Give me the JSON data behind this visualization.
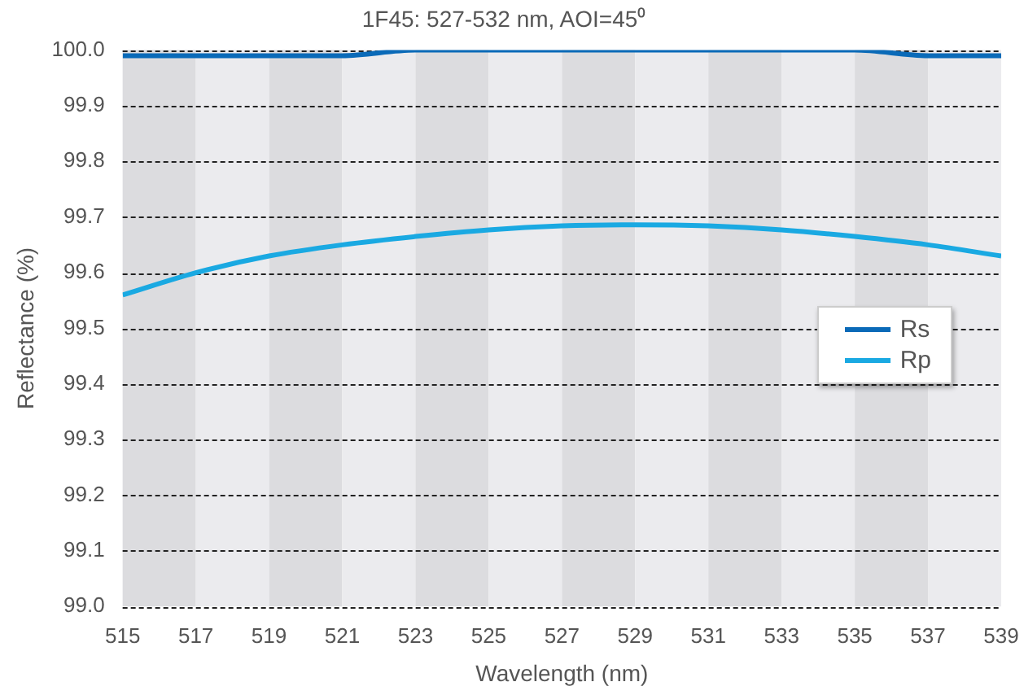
{
  "chart_data": {
    "type": "line",
    "title": "1F45: 527-532 nm, AOI=45⁰",
    "xlabel": "Wavelength (nm)",
    "ylabel": "Reflectance (%)",
    "x": [
      515,
      517,
      519,
      521,
      523,
      525,
      527,
      529,
      531,
      533,
      535,
      537,
      539
    ],
    "series": [
      {
        "name": "Rs",
        "color": "#0a6ab8",
        "values": [
          99.99,
          99.99,
          99.99,
          99.99,
          100.0,
          100.0,
          100.0,
          100.0,
          100.0,
          100.0,
          100.0,
          99.99,
          99.99
        ]
      },
      {
        "name": "Rp",
        "color": "#1aa9e2",
        "values": [
          99.56,
          99.6,
          99.63,
          99.65,
          99.665,
          99.677,
          99.684,
          99.686,
          99.684,
          99.677,
          99.665,
          99.65,
          99.63
        ]
      }
    ],
    "xlim": [
      515,
      539
    ],
    "xticks": [
      515,
      517,
      519,
      521,
      523,
      525,
      527,
      529,
      531,
      533,
      535,
      537,
      539
    ],
    "ylim": [
      99.0,
      100.0
    ],
    "yticks": [
      {
        "value": 99.0,
        "label": "99.0"
      },
      {
        "value": 99.1,
        "label": "99.1"
      },
      {
        "value": 99.2,
        "label": "99.2"
      },
      {
        "value": 99.3,
        "label": "99.3"
      },
      {
        "value": 99.4,
        "label": "99.4"
      },
      {
        "value": 99.5,
        "label": "99.5"
      },
      {
        "value": 99.6,
        "label": "99.6"
      },
      {
        "value": 99.7,
        "label": "99.7"
      },
      {
        "value": 99.8,
        "label": "99.8"
      },
      {
        "value": 99.9,
        "label": "99.9"
      },
      {
        "value": 100.0,
        "label": "100.0"
      }
    ],
    "bands": [
      {
        "axis": "x",
        "from": 515,
        "to": 517,
        "color": "#dcdcdf"
      },
      {
        "axis": "x",
        "from": 517,
        "to": 519,
        "color": "#ebebee"
      },
      {
        "axis": "x",
        "from": 519,
        "to": 521,
        "color": "#dcdcdf"
      },
      {
        "axis": "x",
        "from": 521,
        "to": 523,
        "color": "#ebebee"
      },
      {
        "axis": "x",
        "from": 523,
        "to": 525,
        "color": "#dcdcdf"
      },
      {
        "axis": "x",
        "from": 525,
        "to": 527,
        "color": "#ebebee"
      },
      {
        "axis": "x",
        "from": 527,
        "to": 529,
        "color": "#dcdcdf"
      },
      {
        "axis": "x",
        "from": 529,
        "to": 531,
        "color": "#ebebee"
      },
      {
        "axis": "x",
        "from": 531,
        "to": 533,
        "color": "#dcdcdf"
      },
      {
        "axis": "x",
        "from": 533,
        "to": 535,
        "color": "#ebebee"
      },
      {
        "axis": "x",
        "from": 535,
        "to": 537,
        "color": "#dcdcdf"
      },
      {
        "axis": "x",
        "from": 537,
        "to": 539,
        "color": "#ebebee"
      }
    ],
    "grid": "y",
    "legend": "right",
    "marker": "none",
    "line_style": "solid"
  }
}
